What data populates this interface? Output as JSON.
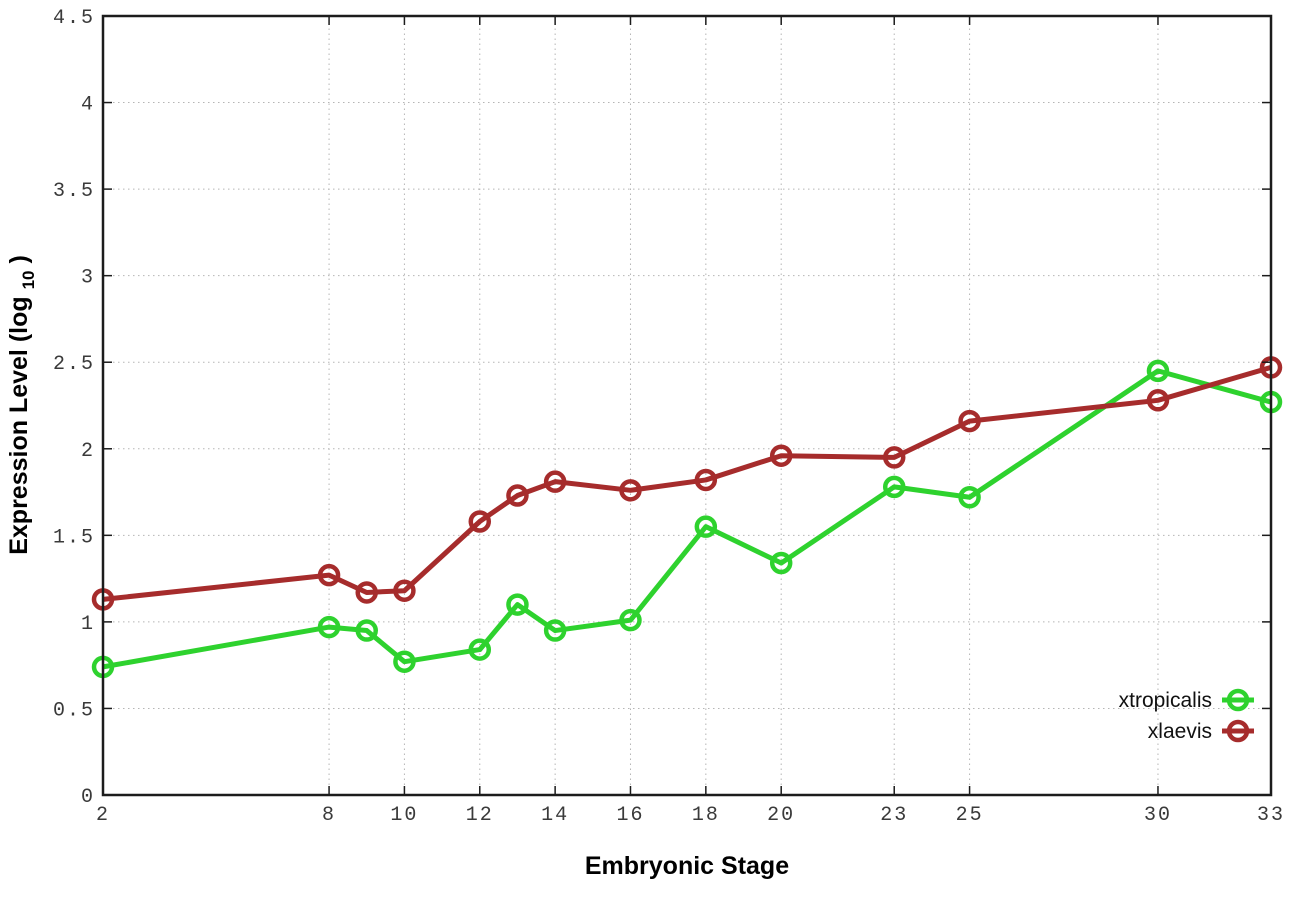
{
  "chart_data": {
    "type": "line",
    "title": "",
    "xlabel": "Embryonic Stage",
    "ylabel": "Expression Level (log10)",
    "ylabel_parts": {
      "main": "Expression Level (log",
      "sub": "10",
      "close": ")"
    },
    "x": [
      2,
      8,
      9,
      10,
      12,
      13,
      14,
      16,
      18,
      20,
      23,
      25,
      30,
      33
    ],
    "xticks": [
      2,
      8,
      10,
      12,
      14,
      16,
      18,
      20,
      23,
      25,
      30,
      33
    ],
    "yticks": [
      "0",
      "0.5",
      "1",
      "1.5",
      "2",
      "2.5",
      "3",
      "3.5",
      "4",
      "4.5"
    ],
    "ytick_values": [
      0,
      0.5,
      1,
      1.5,
      2,
      2.5,
      3,
      3.5,
      4,
      4.5
    ],
    "xlim": [
      2,
      33
    ],
    "ylim": [
      0,
      4.5
    ],
    "grid": true,
    "legend_position": "bottom-right",
    "series": [
      {
        "name": "xtropicalis",
        "color": "#2ed22e",
        "values": [
          0.74,
          0.97,
          0.95,
          0.77,
          0.84,
          1.1,
          0.95,
          1.01,
          1.55,
          1.34,
          1.78,
          1.72,
          2.45,
          2.27
        ]
      },
      {
        "name": "xlaevis",
        "color": "#a62c2c",
        "values": [
          1.13,
          1.27,
          1.17,
          1.18,
          1.58,
          1.73,
          1.81,
          1.76,
          1.82,
          1.96,
          1.95,
          2.16,
          2.28,
          2.47
        ]
      }
    ]
  },
  "colors": {
    "background": "#ffffff",
    "border": "#1c1c1c",
    "grid": "#b5b5b5",
    "tick_label": "#3a3a3a",
    "series_green": "#2ed22e",
    "series_red": "#a62c2c"
  }
}
